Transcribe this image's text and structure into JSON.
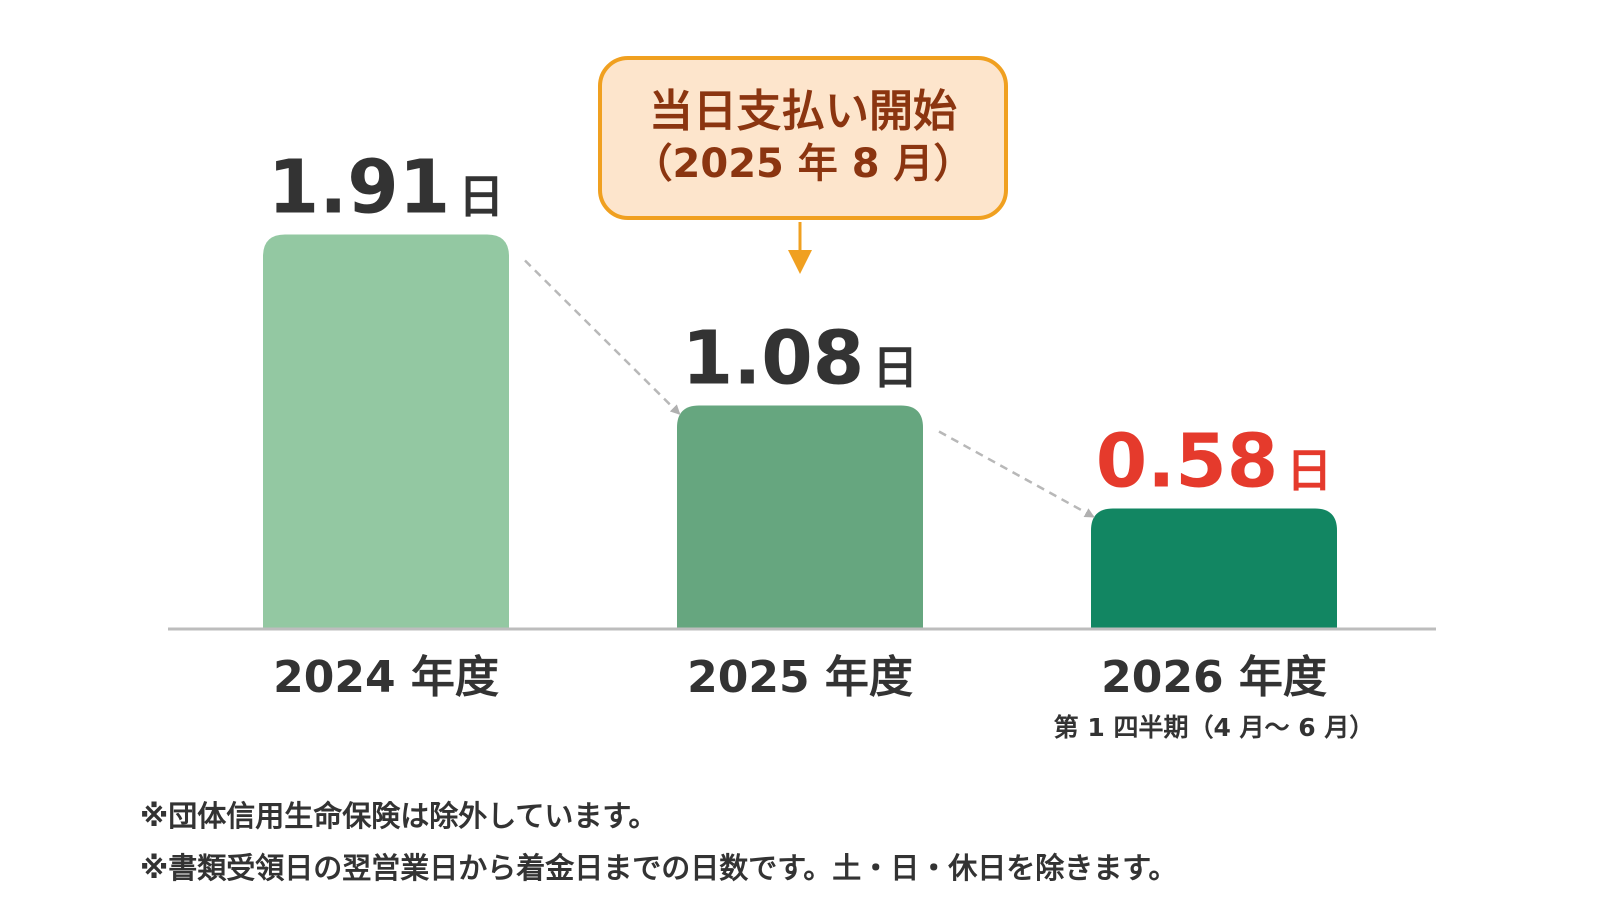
{
  "chart_data": {
    "type": "bar",
    "categories": [
      "2024 年度",
      "2025 年度",
      "2026 年度"
    ],
    "category_sublabels": [
      "",
      "",
      "第 1 四半期（4 月～ 6 月）"
    ],
    "values": [
      1.91,
      1.08,
      0.58
    ],
    "value_labels": [
      "1.91",
      "1.08",
      "0.58"
    ],
    "value_unit": "日",
    "colors": [
      "#93c8a2",
      "#66a67f",
      "#128662"
    ],
    "value_label_colors": [
      "#333333",
      "#333333",
      "#e53a2c"
    ],
    "title": "",
    "xlabel": "",
    "ylabel": "",
    "grid": false,
    "legend": "none"
  },
  "callout": {
    "line1": "当日支払い開始",
    "line2": "（2025 年 8 月）",
    "target_category": "2025 年度",
    "border_color": "#f0a020",
    "background_color": "#fde5cc",
    "text_color": "#8b3510"
  },
  "notes": [
    "※団体信用生命保険は除外しています。",
    "※書類受領日の翌営業日から着金日までの日数です。土・日・休日を除きます。"
  ]
}
